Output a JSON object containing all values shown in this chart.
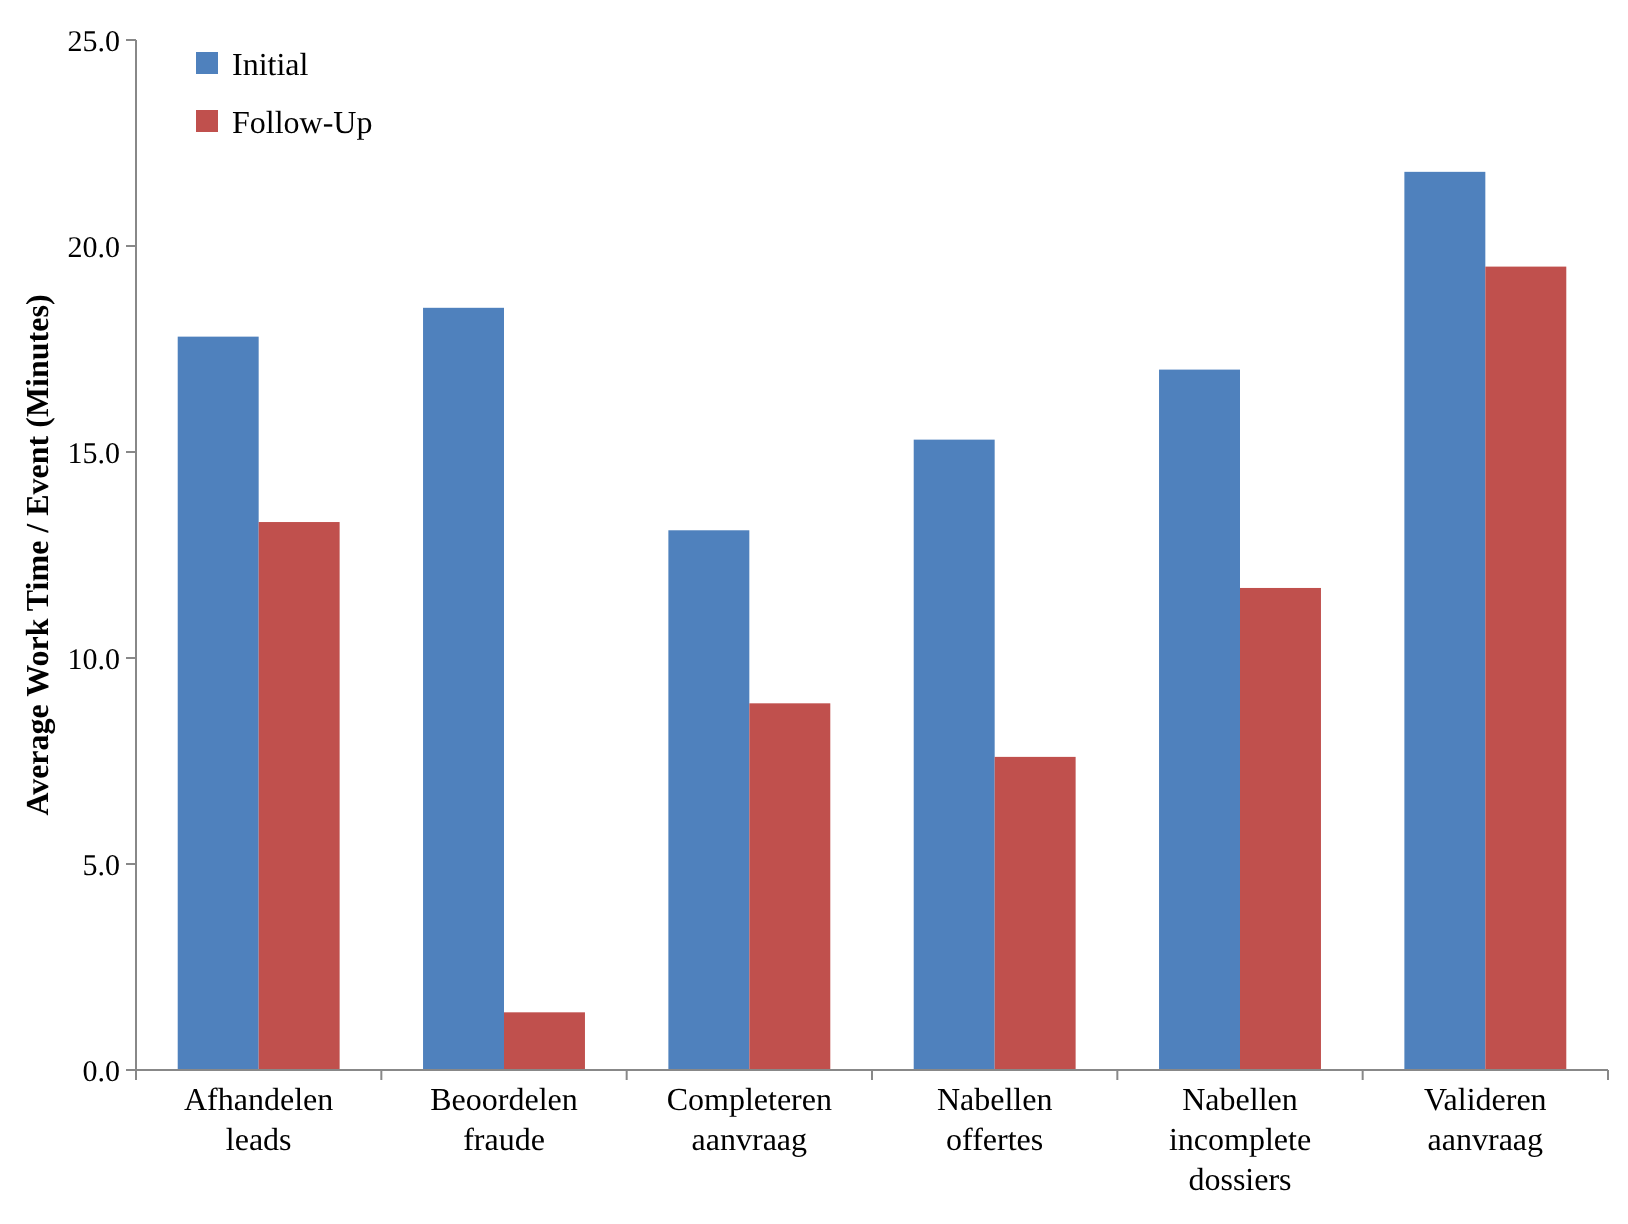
{
  "chart_data": {
    "type": "bar",
    "ylabel": "Average Work Time / Event (Minutes)",
    "categories": [
      "Afhandelen leads",
      "Beoordelen fraude",
      "Completeren aanvraag",
      "Nabellen offertes",
      "Nabellen incomplete dossiers",
      "Valideren aanvraag"
    ],
    "series": [
      {
        "name": "Initial",
        "color": "#4f81bd",
        "values": [
          17.8,
          18.5,
          13.1,
          15.3,
          17.0,
          21.8
        ]
      },
      {
        "name": "Follow-Up",
        "color": "#c0504d",
        "values": [
          13.3,
          1.4,
          8.9,
          7.6,
          11.7,
          19.5
        ]
      }
    ],
    "ylim": [
      0,
      25
    ],
    "yticks": [
      {
        "value": 0,
        "label": "0.0"
      },
      {
        "value": 5,
        "label": "5.0"
      },
      {
        "value": 10,
        "label": "10.0"
      },
      {
        "value": 15,
        "label": "15.0"
      },
      {
        "value": 20,
        "label": "20.0"
      },
      {
        "value": 25,
        "label": "25.0"
      }
    ],
    "grid": false,
    "legend": "top left"
  }
}
